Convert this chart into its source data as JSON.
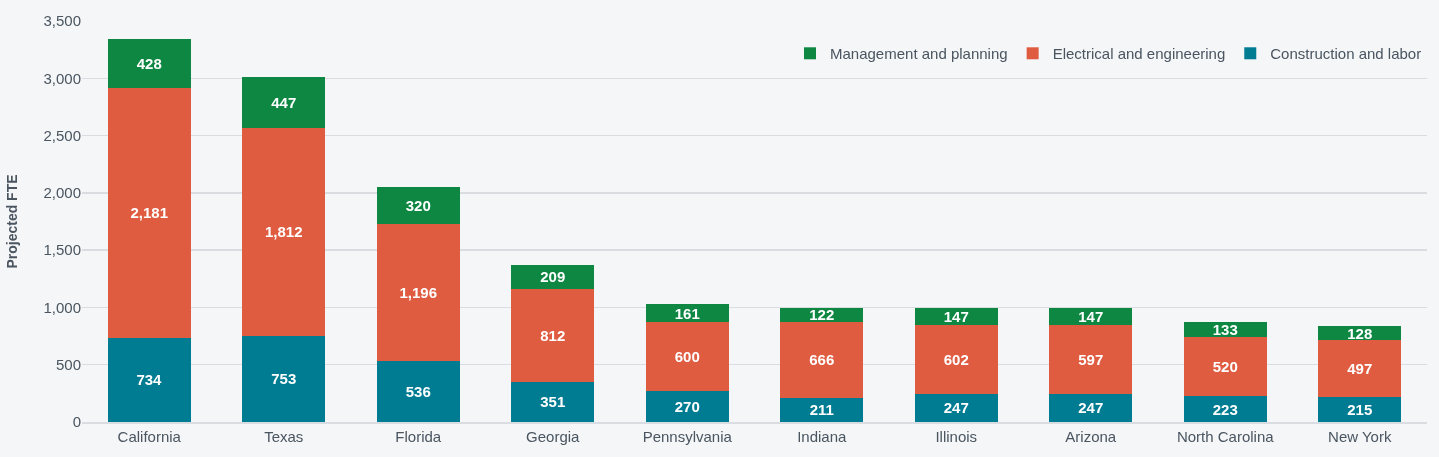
{
  "chart_data": {
    "type": "bar",
    "stacked": true,
    "ylabel": "Projected FTE",
    "categories": [
      "California",
      "Texas",
      "Florida",
      "Georgia",
      "Pennsylvania",
      "Indiana",
      "Illinois",
      "Arizona",
      "North Carolina",
      "New York"
    ],
    "series": [
      {
        "name": "Construction and labor",
        "color": "#007c92",
        "values": [
          734,
          753,
          536,
          351,
          270,
          211,
          247,
          247,
          223,
          215
        ],
        "value_labels": [
          "734",
          "753",
          "536",
          "351",
          "270",
          "211",
          "247",
          "247",
          "223",
          "215"
        ]
      },
      {
        "name": "Electrical and engineering",
        "color": "#e05c41",
        "values": [
          2181,
          1812,
          1196,
          812,
          600,
          666,
          602,
          597,
          520,
          497
        ],
        "value_labels": [
          "2,181",
          "1,812",
          "1,196",
          "812",
          "600",
          "666",
          "602",
          "597",
          "520",
          "497"
        ]
      },
      {
        "name": "Management and planning",
        "color": "#0e8743",
        "values": [
          428,
          447,
          320,
          209,
          161,
          122,
          147,
          147,
          133,
          128
        ],
        "value_labels": [
          "428",
          "447",
          "320",
          "209",
          "161",
          "122",
          "147",
          "147",
          "133",
          "128"
        ]
      }
    ],
    "ylim": [
      0,
      3500
    ],
    "yticks": [
      0,
      500,
      {
        "value": 1000,
        "label": "1,000"
      },
      {
        "value": 1500,
        "label": "1,500"
      },
      {
        "value": 2000,
        "label": "2,000"
      },
      {
        "value": 2500,
        "label": "2,500"
      },
      {
        "value": 3000,
        "label": "3,000"
      },
      {
        "value": 3500,
        "label": "3,500"
      }
    ],
    "grid": "y",
    "legend": "top right"
  }
}
